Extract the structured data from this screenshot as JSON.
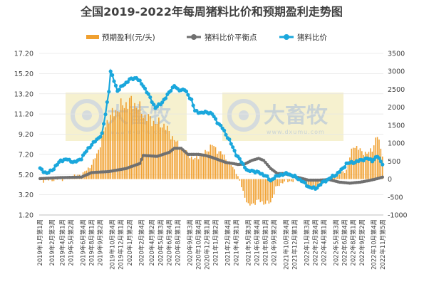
{
  "chart_data": {
    "type": "bar+line",
    "title": "全国2019-2022年每周猪料比价和预期盈利走势图",
    "legend": [
      "预期盈利(元/头)",
      "猪料比价平衡点",
      "猪料比价"
    ],
    "legend_position": "top",
    "y_left": {
      "ticks": [
        "1.20",
        "3.20",
        "5.20",
        "7.20",
        "9.20",
        "11.20",
        "13.20",
        "15.20",
        "17.20"
      ],
      "min": 1.2,
      "max": 17.2
    },
    "y_right": {
      "ticks": [
        "-1000",
        "-500",
        "0",
        "500",
        "1000",
        "1500",
        "2000",
        "2500",
        "3000",
        "3500"
      ],
      "min": -1000,
      "max": 3500
    },
    "x_tick_labels": [
      "2019年1月第1周",
      "2019年2月第3周",
      "2019年4月第1周",
      "2019年5月第2周",
      "2019年6月第4周",
      "2019年8月第1周",
      "2019年9月第2周",
      "2019年10月第4周",
      "2019年12月第1周",
      "2020年1月第2周",
      "2020年2月第4周",
      "2020年4月第2周",
      "2020年5月第3周",
      "2020年6月第4周",
      "2020年8月第1周",
      "2020年9月第3周",
      "2020年10月第4周",
      "2020年12月第1周",
      "2021年1月第2周",
      "2021年2月第4周",
      "2021年4月第1周",
      "2021年5月第3周",
      "2021年6月第4周",
      "2021年8月第1周",
      "2021年9月第2周",
      "2021年10月第4周",
      "2021年12月第1周",
      "2022年1月第3周",
      "2022年2月第4周",
      "2022年4月第1周",
      "2022年5月第3周",
      "2022年6月第4周",
      "2022年8月第1周",
      "2022年9月第2周",
      "2022年10月第4周",
      "2022年11月第5周"
    ],
    "x_tick_week_index": [
      0,
      7,
      13,
      18,
      25,
      30,
      35,
      42,
      47,
      52,
      59,
      65,
      70,
      75,
      80,
      87,
      92,
      97,
      102,
      109,
      114,
      121,
      126,
      131,
      136,
      143,
      148,
      155,
      160,
      165,
      172,
      177,
      182,
      187,
      194,
      199
    ],
    "weeks": 200,
    "series": [
      {
        "name": "预期盈利(元/头)",
        "kind": "bar",
        "axis": "right",
        "color": "#f0a030",
        "anchors": [
          [
            0,
            -50
          ],
          [
            8,
            -20
          ],
          [
            14,
            10
          ],
          [
            20,
            80
          ],
          [
            25,
            150
          ],
          [
            30,
            400
          ],
          [
            33,
            700
          ],
          [
            36,
            1100
          ],
          [
            38,
            1500
          ],
          [
            40,
            1700
          ],
          [
            42,
            1800
          ],
          [
            45,
            1950
          ],
          [
            48,
            2050
          ],
          [
            52,
            2150
          ],
          [
            55,
            2100
          ],
          [
            57,
            2000
          ],
          [
            60,
            1800
          ],
          [
            64,
            1650
          ],
          [
            68,
            1550
          ],
          [
            72,
            1500
          ],
          [
            75,
            1300
          ],
          [
            78,
            1100
          ],
          [
            82,
            850
          ],
          [
            86,
            700
          ],
          [
            89,
            550
          ],
          [
            92,
            620
          ],
          [
            96,
            750
          ],
          [
            100,
            950
          ],
          [
            103,
            800
          ],
          [
            106,
            700
          ],
          [
            110,
            450
          ],
          [
            114,
            200
          ],
          [
            118,
            -350
          ],
          [
            121,
            -750
          ],
          [
            123,
            -700
          ],
          [
            127,
            -600
          ],
          [
            131,
            -680
          ],
          [
            134,
            -650
          ],
          [
            137,
            -250
          ],
          [
            141,
            -80
          ],
          [
            144,
            -60
          ],
          [
            148,
            -50
          ],
          [
            152,
            0
          ],
          [
            157,
            -250
          ],
          [
            162,
            -180
          ],
          [
            166,
            -70
          ],
          [
            170,
            50
          ],
          [
            174,
            150
          ],
          [
            178,
            250
          ],
          [
            182,
            950
          ],
          [
            186,
            800
          ],
          [
            190,
            700
          ],
          [
            193,
            850
          ],
          [
            196,
            1200
          ],
          [
            199,
            700
          ]
        ]
      },
      {
        "name": "猪料比价平衡点",
        "kind": "line",
        "axis": "left",
        "color": "#707070",
        "anchors": [
          [
            0,
            4.8
          ],
          [
            12,
            4.9
          ],
          [
            24,
            4.95
          ],
          [
            30,
            5.4
          ],
          [
            40,
            5.5
          ],
          [
            50,
            5.8
          ],
          [
            58,
            6.3
          ],
          [
            60,
            7.1
          ],
          [
            68,
            7.0
          ],
          [
            75,
            7.4
          ],
          [
            78,
            7.8
          ],
          [
            82,
            7.8
          ],
          [
            86,
            7.2
          ],
          [
            92,
            7.2
          ],
          [
            96,
            7.1
          ],
          [
            100,
            6.9
          ],
          [
            108,
            6.4
          ],
          [
            112,
            6.3
          ],
          [
            115,
            6.2
          ],
          [
            119,
            6.25
          ],
          [
            123,
            6.6
          ],
          [
            127,
            6.8
          ],
          [
            130,
            6.6
          ],
          [
            134,
            5.8
          ],
          [
            138,
            5.3
          ],
          [
            142,
            5.3
          ],
          [
            148,
            5.0
          ],
          [
            156,
            4.65
          ],
          [
            162,
            4.65
          ],
          [
            168,
            4.7
          ],
          [
            174,
            4.45
          ],
          [
            180,
            4.35
          ],
          [
            186,
            4.45
          ],
          [
            191,
            4.6
          ],
          [
            196,
            4.8
          ],
          [
            199,
            4.95
          ]
        ]
      },
      {
        "name": "猪料比价",
        "kind": "line",
        "axis": "left",
        "color": "#1aa7dc",
        "anchors": [
          [
            0,
            5.8
          ],
          [
            4,
            5.3
          ],
          [
            8,
            5.8
          ],
          [
            12,
            6.6
          ],
          [
            16,
            6.7
          ],
          [
            20,
            6.4
          ],
          [
            24,
            6.8
          ],
          [
            28,
            7.8
          ],
          [
            32,
            8.5
          ],
          [
            36,
            9.2
          ],
          [
            38,
            11.2
          ],
          [
            40,
            13.5
          ],
          [
            41,
            15.4
          ],
          [
            43,
            14.5
          ],
          [
            45,
            13.5
          ],
          [
            48,
            14.0
          ],
          [
            52,
            14.6
          ],
          [
            56,
            14.8
          ],
          [
            60,
            14.0
          ],
          [
            64,
            12.8
          ],
          [
            67,
            11.8
          ],
          [
            70,
            12.2
          ],
          [
            73,
            12.8
          ],
          [
            76,
            13.6
          ],
          [
            78,
            14.0
          ],
          [
            80,
            13.6
          ],
          [
            84,
            13.6
          ],
          [
            88,
            12.6
          ],
          [
            90,
            11.5
          ],
          [
            94,
            11.3
          ],
          [
            97,
            11.4
          ],
          [
            100,
            11.2
          ],
          [
            103,
            10.4
          ],
          [
            106,
            9.8
          ],
          [
            110,
            8.6
          ],
          [
            114,
            7.2
          ],
          [
            118,
            6.2
          ],
          [
            121,
            5.5
          ],
          [
            123,
            5.6
          ],
          [
            127,
            5.4
          ],
          [
            131,
            5.1
          ],
          [
            134,
            4.6
          ],
          [
            136,
            4.9
          ],
          [
            140,
            5.2
          ],
          [
            144,
            5.3
          ],
          [
            148,
            5.0
          ],
          [
            152,
            4.6
          ],
          [
            156,
            4.0
          ],
          [
            160,
            3.8
          ],
          [
            164,
            4.4
          ],
          [
            168,
            4.8
          ],
          [
            172,
            5.2
          ],
          [
            176,
            5.8
          ],
          [
            178,
            6.3
          ],
          [
            182,
            6.4
          ],
          [
            186,
            6.6
          ],
          [
            190,
            6.8
          ],
          [
            193,
            6.6
          ],
          [
            196,
            7.0
          ],
          [
            199,
            6.3
          ]
        ]
      }
    ],
    "watermark": {
      "text": "大畜牧",
      "sub": "www.dxumu.com"
    }
  }
}
